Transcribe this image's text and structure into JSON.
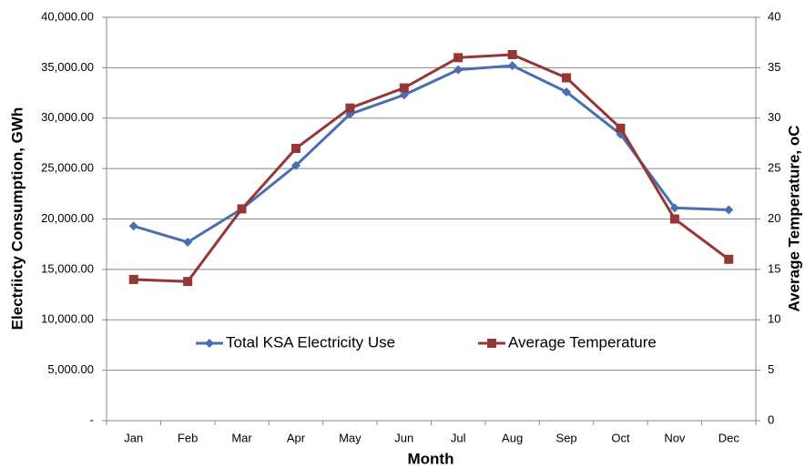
{
  "chart_data": {
    "type": "line",
    "x_label": "Month",
    "y_label": "Electriicty Consumption, GWh",
    "y2_label": "Average Temperature, oC",
    "categories": [
      "Jan",
      "Feb",
      "Mar",
      "Apr",
      "May",
      "Jun",
      "Jul",
      "Aug",
      "Sep",
      "Oct",
      "Nov",
      "Dec"
    ],
    "series": [
      {
        "name": "Total KSA Electricity Use",
        "color": "#4a6eb5",
        "marker": "diamond",
        "values": [
          19300,
          17700,
          21000,
          25300,
          30400,
          32300,
          34800,
          35200,
          32600,
          28400,
          21100,
          20900
        ]
      },
      {
        "name": "Average Temperature",
        "color": "#953735",
        "marker": "square",
        "axis": "y2",
        "values": [
          14,
          13.8,
          21,
          27,
          31,
          33,
          36,
          36.3,
          34,
          29,
          20,
          16
        ]
      }
    ],
    "ylim": [
      0,
      40000
    ],
    "yticks": [
      {
        "value": 0,
        "label": "-"
      },
      {
        "value": 5000,
        "label": "5,000.00"
      },
      {
        "value": 10000,
        "label": "10,000.00"
      },
      {
        "value": 15000,
        "label": "15,000.00"
      },
      {
        "value": 20000,
        "label": "20,000.00"
      },
      {
        "value": 25000,
        "label": "25,000.00"
      },
      {
        "value": 30000,
        "label": "30,000.00"
      },
      {
        "value": 35000,
        "label": "35,000.00"
      },
      {
        "value": 40000,
        "label": "40,000.00"
      }
    ],
    "y2lim": [
      0,
      40
    ],
    "y2ticks": [
      0,
      5,
      10,
      15,
      20,
      25,
      30,
      35,
      40
    ],
    "grid": true
  }
}
